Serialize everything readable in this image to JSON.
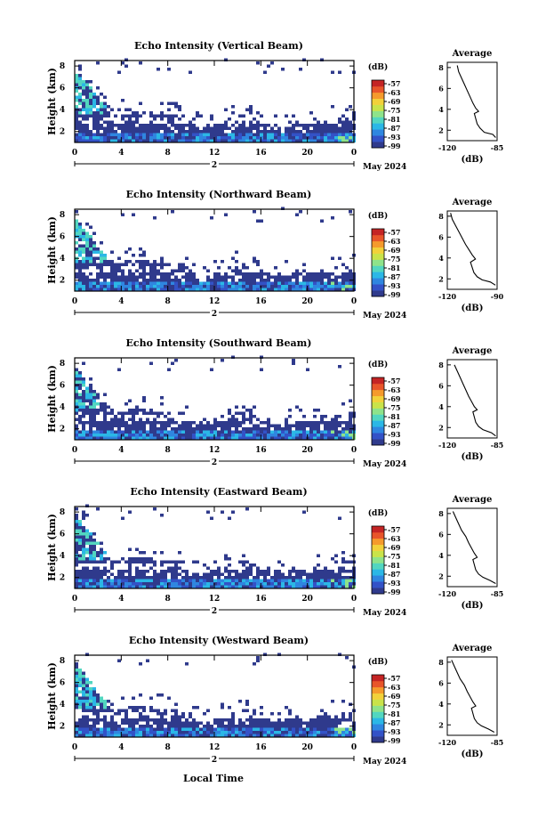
{
  "figure": {
    "x_axis_title": "Local Time",
    "date_label": "May 2024",
    "day_label": "2",
    "profile_title": "Average",
    "profile_unit": "(dB)",
    "colorbar_unit": "(dB)",
    "y_axis_title": "Height (km)"
  },
  "colorbar": {
    "ticks": [
      "-57",
      "-63",
      "-69",
      "-75",
      "-81",
      "-87",
      "-93",
      "-99"
    ],
    "colors": [
      "#2f3a8c",
      "#3352c7",
      "#2f86e0",
      "#2bb7e6",
      "#52d6c0",
      "#8ee38a",
      "#c9e34a",
      "#f2d13a",
      "#f59a2c",
      "#e8552a",
      "#c42424"
    ]
  },
  "chart_data": [
    {
      "type": "heatmap",
      "title": "Echo Intensity (Vertical Beam)",
      "ylabel": "Height (km)",
      "x_ticks": [
        "0",
        "4",
        "8",
        "12",
        "16",
        "20",
        "0"
      ],
      "y_ticks": [
        "2",
        "4",
        "6",
        "8"
      ],
      "xlim": [
        0,
        24
      ],
      "ylim": [
        1,
        8.5
      ],
      "color_range_dB": [
        -99,
        -57
      ],
      "profile": {
        "title": "Average",
        "xlabel": "(dB)",
        "x_ticks": [
          "-120",
          "-85"
        ],
        "xlim": [
          -120,
          -85
        ],
        "ylim": [
          1,
          8.5
        ],
        "points": [
          [
            -113,
            8.2
          ],
          [
            -112,
            7.6
          ],
          [
            -110,
            7.0
          ],
          [
            -108,
            6.4
          ],
          [
            -106,
            5.8
          ],
          [
            -104,
            5.2
          ],
          [
            -102,
            4.6
          ],
          [
            -100,
            4.1
          ],
          [
            -98,
            3.8
          ],
          [
            -101,
            3.6
          ],
          [
            -100,
            3.1
          ],
          [
            -99,
            2.6
          ],
          [
            -97,
            2.2
          ],
          [
            -94,
            1.8
          ],
          [
            -88,
            1.6
          ],
          [
            -86,
            1.3
          ]
        ]
      }
    },
    {
      "type": "heatmap",
      "title": "Echo Intensity (Northward Beam)",
      "ylabel": "Height (km)",
      "x_ticks": [
        "0",
        "4",
        "8",
        "12",
        "16",
        "20",
        "0"
      ],
      "y_ticks": [
        "2",
        "4",
        "6",
        "8"
      ],
      "xlim": [
        0,
        24
      ],
      "ylim": [
        1,
        8.5
      ],
      "color_range_dB": [
        -99,
        -57
      ],
      "profile": {
        "title": "Average",
        "xlabel": "(dB)",
        "x_ticks": [
          "-120",
          "-90"
        ],
        "xlim": [
          -120,
          -90
        ],
        "ylim": [
          1,
          8.5
        ],
        "points": [
          [
            -118,
            8.3
          ],
          [
            -117,
            7.7
          ],
          [
            -115,
            7.1
          ],
          [
            -113,
            6.5
          ],
          [
            -111,
            5.9
          ],
          [
            -109,
            5.3
          ],
          [
            -107,
            4.8
          ],
          [
            -105,
            4.3
          ],
          [
            -103,
            3.9
          ],
          [
            -106,
            3.6
          ],
          [
            -105,
            3.1
          ],
          [
            -104,
            2.6
          ],
          [
            -102,
            2.2
          ],
          [
            -99,
            1.9
          ],
          [
            -94,
            1.7
          ],
          [
            -91,
            1.4
          ]
        ]
      }
    },
    {
      "type": "heatmap",
      "title": "Echo Intensity (Southward Beam)",
      "ylabel": "Height (km)",
      "x_ticks": [
        "0",
        "4",
        "8",
        "12",
        "16",
        "20",
        "0"
      ],
      "y_ticks": [
        "2",
        "4",
        "6",
        "8"
      ],
      "xlim": [
        0,
        24
      ],
      "ylim": [
        1,
        8.5
      ],
      "color_range_dB": [
        -99,
        -57
      ],
      "profile": {
        "title": "Average",
        "xlabel": "(dB)",
        "x_ticks": [
          "-120",
          "-85"
        ],
        "xlim": [
          -120,
          -85
        ],
        "ylim": [
          1,
          8.5
        ],
        "points": [
          [
            -115,
            8.0
          ],
          [
            -113,
            7.4
          ],
          [
            -111,
            6.8
          ],
          [
            -109,
            6.2
          ],
          [
            -107,
            5.6
          ],
          [
            -105,
            5.0
          ],
          [
            -103,
            4.5
          ],
          [
            -101,
            4.0
          ],
          [
            -99,
            3.7
          ],
          [
            -102,
            3.5
          ],
          [
            -101,
            3.0
          ],
          [
            -100,
            2.5
          ],
          [
            -98,
            2.1
          ],
          [
            -95,
            1.8
          ],
          [
            -89,
            1.5
          ],
          [
            -86,
            1.2
          ]
        ]
      }
    },
    {
      "type": "heatmap",
      "title": "Echo Intensity (Eastward Beam)",
      "ylabel": "Height (km)",
      "x_ticks": [
        "0",
        "4",
        "8",
        "12",
        "16",
        "20",
        "0"
      ],
      "y_ticks": [
        "2",
        "4",
        "6",
        "8"
      ],
      "xlim": [
        0,
        24
      ],
      "ylim": [
        1,
        8.5
      ],
      "color_range_dB": [
        -99,
        -57
      ],
      "profile": {
        "title": "Average",
        "xlabel": "(dB)",
        "x_ticks": [
          "-120",
          "-85"
        ],
        "xlim": [
          -120,
          -85
        ],
        "ylim": [
          1,
          8.5
        ],
        "points": [
          [
            -116,
            8.2
          ],
          [
            -114,
            7.6
          ],
          [
            -112,
            7.0
          ],
          [
            -110,
            6.4
          ],
          [
            -107,
            5.8
          ],
          [
            -105,
            5.2
          ],
          [
            -103,
            4.7
          ],
          [
            -101,
            4.2
          ],
          [
            -99,
            3.8
          ],
          [
            -102,
            3.6
          ],
          [
            -101,
            3.1
          ],
          [
            -100,
            2.6
          ],
          [
            -98,
            2.2
          ],
          [
            -95,
            1.9
          ],
          [
            -90,
            1.6
          ],
          [
            -86,
            1.3
          ]
        ]
      }
    },
    {
      "type": "heatmap",
      "title": "Echo Intensity (Westward Beam)",
      "ylabel": "Height (km)",
      "x_ticks": [
        "0",
        "4",
        "8",
        "12",
        "16",
        "20",
        "0"
      ],
      "y_ticks": [
        "2",
        "4",
        "6",
        "8"
      ],
      "xlim": [
        0,
        24
      ],
      "ylim": [
        1,
        8.5
      ],
      "color_range_dB": [
        -99,
        -57
      ],
      "profile": {
        "title": "Average",
        "xlabel": "(dB)",
        "x_ticks": [
          "-120",
          "-85"
        ],
        "xlim": [
          -120,
          -85
        ],
        "ylim": [
          1,
          8.5
        ],
        "points": [
          [
            -117,
            8.2
          ],
          [
            -115,
            7.6
          ],
          [
            -113,
            7.0
          ],
          [
            -111,
            6.4
          ],
          [
            -108,
            5.8
          ],
          [
            -106,
            5.2
          ],
          [
            -104,
            4.7
          ],
          [
            -102,
            4.2
          ],
          [
            -100,
            3.8
          ],
          [
            -103,
            3.6
          ],
          [
            -102,
            3.1
          ],
          [
            -101,
            2.6
          ],
          [
            -99,
            2.2
          ],
          [
            -96,
            1.9
          ],
          [
            -91,
            1.6
          ],
          [
            -87,
            1.3
          ]
        ]
      }
    }
  ]
}
